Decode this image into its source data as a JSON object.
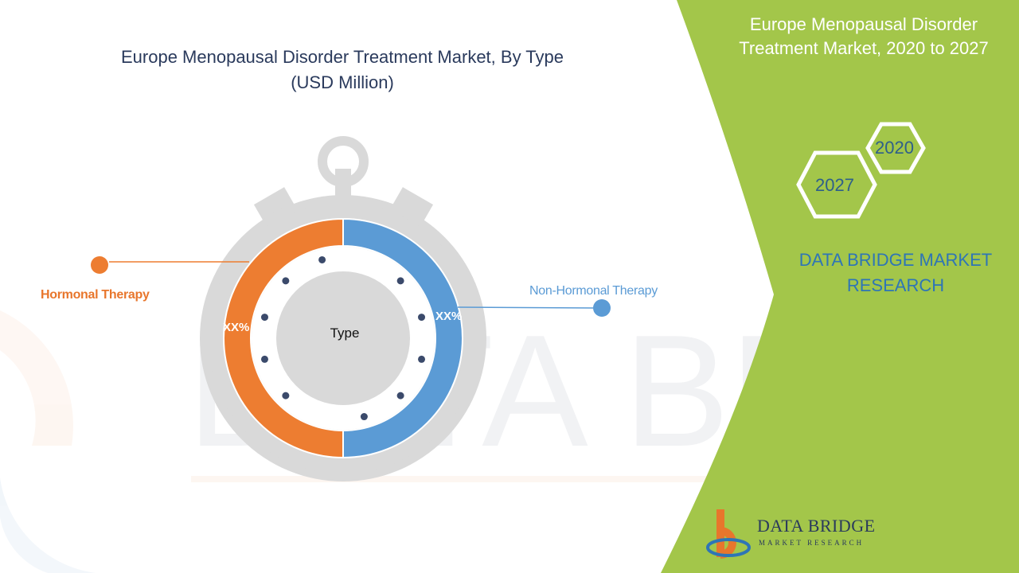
{
  "title": {
    "line1": "Europe Menopausal Disorder Treatment Market, By Type",
    "line2": "(USD Million)"
  },
  "chart_data": {
    "type": "pie",
    "donut": true,
    "center_label": "Type",
    "segments": [
      {
        "name": "Hormonal Therapy",
        "value": 50,
        "display_value": "XX%",
        "color": "#ed7d31"
      },
      {
        "name": "Non-Hormonal Therapy",
        "value": 50,
        "display_value": "XX%",
        "color": "#5b9bd5"
      }
    ]
  },
  "sidebar": {
    "title_line1": "Europe Menopausal Disorder",
    "title_line2": "Treatment Market, 2020 to 2027",
    "year_start": "2020",
    "year_end": "2027",
    "brand_line1": "DATA BRIDGE MARKET",
    "brand_line2": "RESEARCH"
  },
  "logo": {
    "name": "DATA BRIDGE",
    "tagline": "MARKET RESEARCH"
  },
  "colors": {
    "accent_green": "#a3c64a",
    "hormonal": "#ed7d31",
    "non_hormonal": "#5b9bd5",
    "stopwatch_gray": "#d9d9d9",
    "dot": "#3b4a6b"
  }
}
